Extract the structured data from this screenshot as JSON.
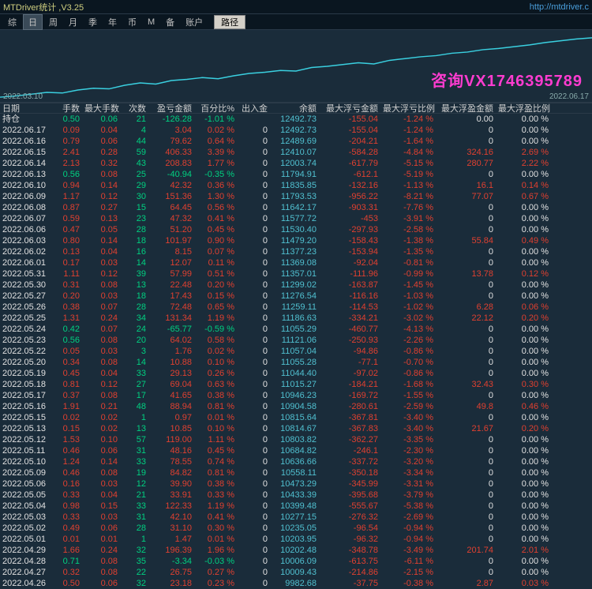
{
  "title": "MTDriver统计 ,V3.25",
  "url": "http://mtdriver.c",
  "toolbar": {
    "items": [
      "综",
      "日",
      "周",
      "月",
      "季",
      "年",
      "币",
      "M",
      "备",
      "账户"
    ],
    "active_index": 1,
    "button": "路径"
  },
  "chart": {
    "x_left": "2022.03.10",
    "x_right": "2022.06.17",
    "watermark": "咨询VX1746395789",
    "line_color": "#3ad0e0",
    "bg": "#1a2c3a",
    "points": [
      0,
      2,
      5,
      8,
      7,
      12,
      15,
      14,
      20,
      24,
      22,
      28,
      30,
      33,
      31,
      36,
      40,
      42,
      45,
      44,
      50,
      52,
      55,
      58,
      56,
      62,
      65,
      68,
      70,
      74,
      76,
      80,
      82,
      85,
      88,
      92,
      95,
      98,
      100
    ]
  },
  "columns": [
    "日期",
    "手数",
    "最大手数",
    "次数",
    "盈亏金额",
    "百分比%",
    "出入金",
    "余额",
    "最大浮亏金额",
    "最大浮亏比例",
    "最大浮盈金额",
    "最大浮盈比例"
  ],
  "holding_label": "持仓",
  "holding": [
    "0.50",
    "0.06",
    "21",
    "-126.28",
    "-1.01 %",
    "",
    "12492.73",
    "-155.04",
    "-1.24 %",
    "0.00",
    "0.00 %"
  ],
  "rows": [
    [
      "2022.06.17",
      "0.09",
      "0.04",
      "4",
      "3.04",
      "0.02 %",
      "0",
      "12492.73",
      "-155.04",
      "-1.24 %",
      "0",
      "0.00 %"
    ],
    [
      "2022.06.16",
      "0.79",
      "0.06",
      "44",
      "79.62",
      "0.64 %",
      "0",
      "12489.69",
      "-204.21",
      "-1.64 %",
      "0",
      "0.00 %"
    ],
    [
      "2022.06.15",
      "2.41",
      "0.28",
      "59",
      "406.33",
      "3.39 %",
      "0",
      "12410.07",
      "-584.28",
      "-4.84 %",
      "324.16",
      "2.69 %"
    ],
    [
      "2022.06.14",
      "2.13",
      "0.32",
      "43",
      "208.83",
      "1.77 %",
      "0",
      "12003.74",
      "-617.79",
      "-5.15 %",
      "280.77",
      "2.22 %"
    ],
    [
      "2022.06.13",
      "0.56",
      "0.08",
      "25",
      "-40.94",
      "-0.35 %",
      "0",
      "11794.91",
      "-612.1",
      "-5.19 %",
      "0",
      "0.00 %"
    ],
    [
      "2022.06.10",
      "0.94",
      "0.14",
      "29",
      "42.32",
      "0.36 %",
      "0",
      "11835.85",
      "-132.16",
      "-1.13 %",
      "16.1",
      "0.14 %"
    ],
    [
      "2022.06.09",
      "1.17",
      "0.12",
      "30",
      "151.36",
      "1.30 %",
      "0",
      "11793.53",
      "-956.22",
      "-8.21 %",
      "77.07",
      "0.67 %"
    ],
    [
      "2022.06.08",
      "0.87",
      "0.27",
      "15",
      "64.45",
      "0.56 %",
      "0",
      "11642.17",
      "-903.31",
      "-7.76 %",
      "0",
      "0.00 %"
    ],
    [
      "2022.06.07",
      "0.59",
      "0.13",
      "23",
      "47.32",
      "0.41 %",
      "0",
      "11577.72",
      "-453",
      "-3.91 %",
      "0",
      "0.00 %"
    ],
    [
      "2022.06.06",
      "0.47",
      "0.05",
      "28",
      "51.20",
      "0.45 %",
      "0",
      "11530.40",
      "-297.93",
      "-2.58 %",
      "0",
      "0.00 %"
    ],
    [
      "2022.06.03",
      "0.80",
      "0.14",
      "18",
      "101.97",
      "0.90 %",
      "0",
      "11479.20",
      "-158.43",
      "-1.38 %",
      "55.84",
      "0.49 %"
    ],
    [
      "2022.06.02",
      "0.13",
      "0.04",
      "16",
      "8.15",
      "0.07 %",
      "0",
      "11377.23",
      "-153.94",
      "-1.35 %",
      "0",
      "0.00 %"
    ],
    [
      "2022.06.01",
      "0.17",
      "0.03",
      "14",
      "12.07",
      "0.11 %",
      "0",
      "11369.08",
      "-92.04",
      "-0.81 %",
      "0",
      "0.00 %"
    ],
    [
      "2022.05.31",
      "1.11",
      "0.12",
      "39",
      "57.99",
      "0.51 %",
      "0",
      "11357.01",
      "-111.96",
      "-0.99 %",
      "13.78",
      "0.12 %"
    ],
    [
      "2022.05.30",
      "0.31",
      "0.08",
      "13",
      "22.48",
      "0.20 %",
      "0",
      "11299.02",
      "-163.87",
      "-1.45 %",
      "0",
      "0.00 %"
    ],
    [
      "2022.05.27",
      "0.20",
      "0.03",
      "18",
      "17.43",
      "0.15 %",
      "0",
      "11276.54",
      "-116.16",
      "-1.03 %",
      "0",
      "0.00 %"
    ],
    [
      "2022.05.26",
      "0.38",
      "0.07",
      "28",
      "72.48",
      "0.65 %",
      "0",
      "11259.11",
      "-114.53",
      "-1.02 %",
      "6.28",
      "0.06 %"
    ],
    [
      "2022.05.25",
      "1.31",
      "0.24",
      "34",
      "131.34",
      "1.19 %",
      "0",
      "11186.63",
      "-334.21",
      "-3.02 %",
      "22.12",
      "0.20 %"
    ],
    [
      "2022.05.24",
      "0.42",
      "0.07",
      "24",
      "-65.77",
      "-0.59 %",
      "0",
      "11055.29",
      "-460.77",
      "-4.13 %",
      "0",
      "0.00 %"
    ],
    [
      "2022.05.23",
      "0.56",
      "0.08",
      "20",
      "64.02",
      "0.58 %",
      "0",
      "11121.06",
      "-250.93",
      "-2.26 %",
      "0",
      "0.00 %"
    ],
    [
      "2022.05.22",
      "0.05",
      "0.03",
      "3",
      "1.76",
      "0.02 %",
      "0",
      "11057.04",
      "-94.86",
      "-0.86 %",
      "0",
      "0.00 %"
    ],
    [
      "2022.05.20",
      "0.34",
      "0.08",
      "14",
      "10.88",
      "0.10 %",
      "0",
      "11055.28",
      "-77.1",
      "-0.70 %",
      "0",
      "0.00 %"
    ],
    [
      "2022.05.19",
      "0.45",
      "0.04",
      "33",
      "29.13",
      "0.26 %",
      "0",
      "11044.40",
      "-97.02",
      "-0.86 %",
      "0",
      "0.00 %"
    ],
    [
      "2022.05.18",
      "0.81",
      "0.12",
      "27",
      "69.04",
      "0.63 %",
      "0",
      "11015.27",
      "-184.21",
      "-1.68 %",
      "32.43",
      "0.30 %"
    ],
    [
      "2022.05.17",
      "0.37",
      "0.08",
      "17",
      "41.65",
      "0.38 %",
      "0",
      "10946.23",
      "-169.72",
      "-1.55 %",
      "0",
      "0.00 %"
    ],
    [
      "2022.05.16",
      "1.91",
      "0.21",
      "48",
      "88.94",
      "0.81 %",
      "0",
      "10904.58",
      "-280.61",
      "-2.59 %",
      "49.8",
      "0.46 %"
    ],
    [
      "2022.05.15",
      "0.02",
      "0.02",
      "1",
      "0.97",
      "0.01 %",
      "0",
      "10815.64",
      "-367.81",
      "-3.40 %",
      "0",
      "0.00 %"
    ],
    [
      "2022.05.13",
      "0.15",
      "0.02",
      "13",
      "10.85",
      "0.10 %",
      "0",
      "10814.67",
      "-367.83",
      "-3.40 %",
      "21.67",
      "0.20 %"
    ],
    [
      "2022.05.12",
      "1.53",
      "0.10",
      "57",
      "119.00",
      "1.11 %",
      "0",
      "10803.82",
      "-362.27",
      "-3.35 %",
      "0",
      "0.00 %"
    ],
    [
      "2022.05.11",
      "0.46",
      "0.06",
      "31",
      "48.16",
      "0.45 %",
      "0",
      "10684.82",
      "-246.1",
      "-2.30 %",
      "0",
      "0.00 %"
    ],
    [
      "2022.05.10",
      "1.24",
      "0.14",
      "33",
      "78.55",
      "0.74 %",
      "0",
      "10636.66",
      "-337.72",
      "-3.20 %",
      "0",
      "0.00 %"
    ],
    [
      "2022.05.09",
      "0.46",
      "0.08",
      "19",
      "84.82",
      "0.81 %",
      "0",
      "10558.11",
      "-350.18",
      "-3.34 %",
      "0",
      "0.00 %"
    ],
    [
      "2022.05.06",
      "0.16",
      "0.03",
      "12",
      "39.90",
      "0.38 %",
      "0",
      "10473.29",
      "-345.99",
      "-3.31 %",
      "0",
      "0.00 %"
    ],
    [
      "2022.05.05",
      "0.33",
      "0.04",
      "21",
      "33.91",
      "0.33 %",
      "0",
      "10433.39",
      "-395.68",
      "-3.79 %",
      "0",
      "0.00 %"
    ],
    [
      "2022.05.04",
      "0.98",
      "0.15",
      "33",
      "122.33",
      "1.19 %",
      "0",
      "10399.48",
      "-555.67",
      "-5.38 %",
      "0",
      "0.00 %"
    ],
    [
      "2022.05.03",
      "0.33",
      "0.03",
      "31",
      "42.10",
      "0.41 %",
      "0",
      "10277.15",
      "-276.32",
      "-2.69 %",
      "0",
      "0.00 %"
    ],
    [
      "2022.05.02",
      "0.49",
      "0.06",
      "28",
      "31.10",
      "0.30 %",
      "0",
      "10235.05",
      "-96.54",
      "-0.94 %",
      "0",
      "0.00 %"
    ],
    [
      "2022.05.01",
      "0.01",
      "0.01",
      "1",
      "1.47",
      "0.01 %",
      "0",
      "10203.95",
      "-96.32",
      "-0.94 %",
      "0",
      "0.00 %"
    ],
    [
      "2022.04.29",
      "1.66",
      "0.24",
      "32",
      "196.39",
      "1.96 %",
      "0",
      "10202.48",
      "-348.78",
      "-3.49 %",
      "201.74",
      "2.01 %"
    ],
    [
      "2022.04.28",
      "0.71",
      "0.08",
      "35",
      "-3.34",
      "-0.03 %",
      "0",
      "10006.09",
      "-613.75",
      "-6.11 %",
      "0",
      "0.00 %"
    ],
    [
      "2022.04.27",
      "0.32",
      "0.08",
      "22",
      "26.75",
      "0.27 %",
      "0",
      "10009.43",
      "-214.86",
      "-2.15 %",
      "0",
      "0.00 %"
    ],
    [
      "2022.04.26",
      "0.50",
      "0.06",
      "32",
      "23.18",
      "0.23 %",
      "0",
      "9982.68",
      "-37.75",
      "-0.38 %",
      "2.87",
      "0.03 %"
    ]
  ]
}
